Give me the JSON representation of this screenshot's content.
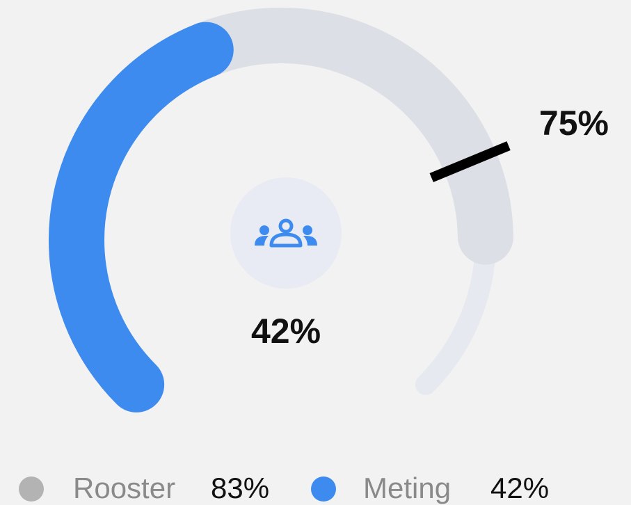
{
  "chart_data": {
    "type": "gauge",
    "ylim": [
      0,
      100
    ],
    "series": [
      {
        "name": "Rooster",
        "color": "#dcdfe5",
        "legend_color": "#b3b3b3",
        "value": 83,
        "value_label": "83%"
      },
      {
        "name": "Meting",
        "color": "#3d8bef",
        "legend_color": "#3d8bef",
        "value": 42,
        "value_label": "42%"
      }
    ],
    "target": 75,
    "target_label": "75%",
    "track_color": "#e6e9f0",
    "target_color": "#000000"
  }
}
